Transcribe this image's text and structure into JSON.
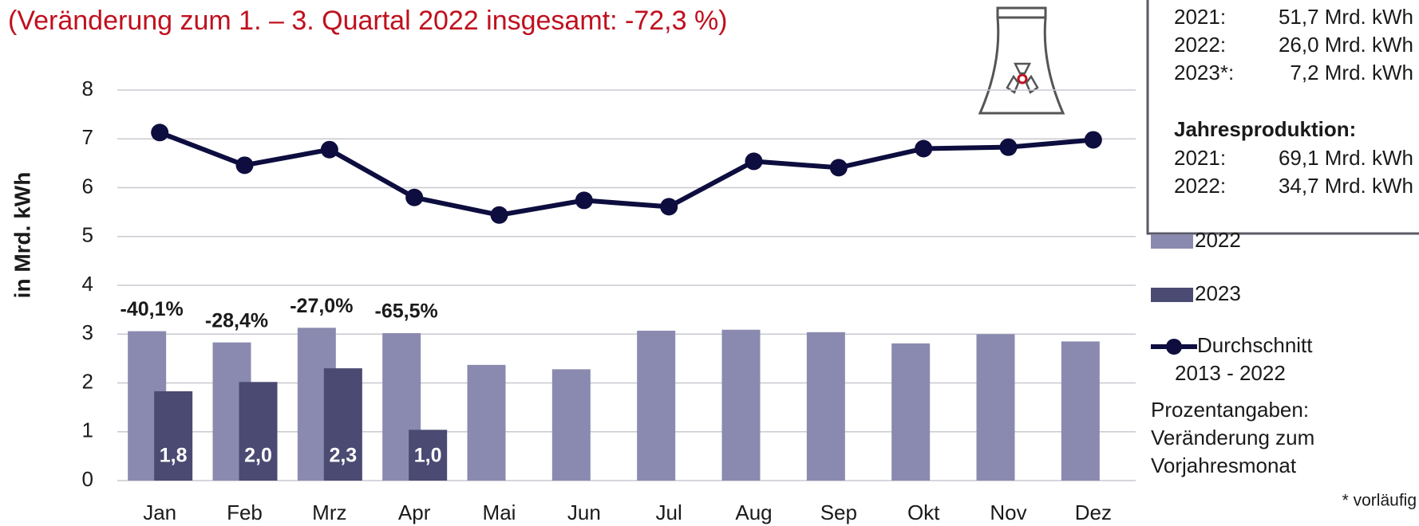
{
  "chart_data": {
    "type": "bar_line",
    "title": "(Veränderung zum 1. – 3. Quartal 2022 insgesamt: -72,3 %)",
    "y_label": "in Mrd. kWh",
    "categories": [
      "Jan",
      "Feb",
      "Mrz",
      "Apr",
      "Mai",
      "Jun",
      "Jul",
      "Aug",
      "Sep",
      "Okt",
      "Nov",
      "Dez"
    ],
    "series": [
      {
        "name": "2022",
        "type": "bar",
        "color": "#8a8ab0",
        "values": [
          3.06,
          2.83,
          3.13,
          3.02,
          2.37,
          2.28,
          3.07,
          3.09,
          3.04,
          2.81,
          3.0,
          2.85
        ]
      },
      {
        "name": "2023",
        "type": "bar",
        "color": "#4a4a72",
        "values": [
          1.83,
          2.02,
          2.3,
          1.04,
          null,
          null,
          null,
          null,
          null,
          null,
          null,
          null
        ],
        "value_labels": [
          "1,8",
          "2,0",
          "2,3",
          "1,0",
          null,
          null,
          null,
          null,
          null,
          null,
          null,
          null
        ]
      },
      {
        "name": "Durchschnitt",
        "name_line2": "2013 - 2022",
        "type": "line",
        "color": "#0d0d3f",
        "values": [
          7.13,
          6.46,
          6.78,
          5.8,
          5.44,
          5.74,
          5.61,
          6.54,
          6.41,
          6.8,
          6.83,
          6.98
        ]
      }
    ],
    "change_labels": [
      "-40,1%",
      "-28,4%",
      "-27,0%",
      "-65,5%"
    ],
    "ylim": [
      0,
      8
    ],
    "yticks": [
      0,
      1,
      2,
      3,
      4,
      5,
      6,
      7,
      8
    ],
    "grid": true,
    "legend": "right",
    "info_box": {
      "rows": [
        [
          "2021:",
          "51,7 Mrd. kWh"
        ],
        [
          "2022:",
          "26,0 Mrd. kWh"
        ],
        [
          "2023*:",
          "7,2 Mrd. kWh"
        ]
      ],
      "heading": "Jahresproduktion:",
      "rows2": [
        [
          "2021:",
          "69,1 Mrd. kWh"
        ],
        [
          "2022:",
          "34,7 Mrd. kWh"
        ]
      ]
    },
    "note": [
      "Prozentangaben:",
      "Veränderung zum",
      "Vorjahresmonat"
    ],
    "footnote": "* vorläufig"
  }
}
